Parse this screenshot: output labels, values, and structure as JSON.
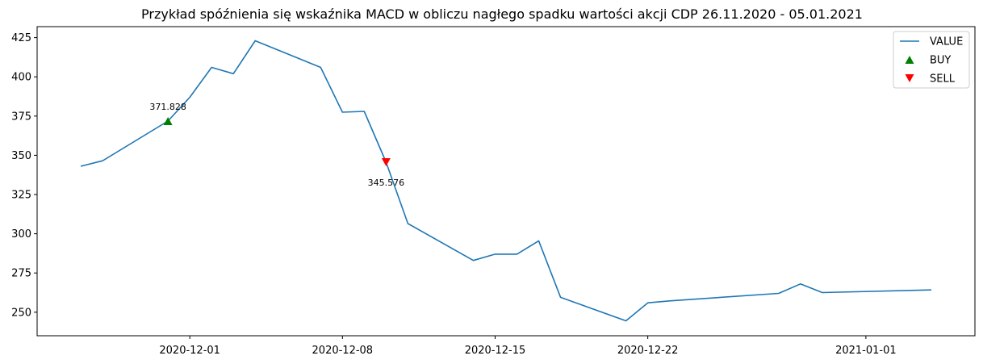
{
  "chart_data": {
    "type": "line",
    "title": "Przykład spóźnienia się wskaźnika MACD w obliczu nagłego spadku wartości akcji CDP 26.11.2020 - 05.01.2021",
    "xlabel": "",
    "ylabel": "",
    "xlim": [
      "2020-11-24",
      "2021-01-06"
    ],
    "ylim": [
      235,
      432
    ],
    "grid": false,
    "legend_position": "top-right",
    "x_ticks": [
      {
        "date": "2020-12-01",
        "label": "2020-12-01"
      },
      {
        "date": "2020-12-08",
        "label": "2020-12-08"
      },
      {
        "date": "2020-12-15",
        "label": "2020-12-15"
      },
      {
        "date": "2020-12-22",
        "label": "2020-12-22"
      },
      {
        "date": "2021-01-01",
        "label": "2021-01-01"
      }
    ],
    "y_ticks": [
      250,
      275,
      300,
      325,
      350,
      375,
      400,
      425
    ],
    "series": [
      {
        "name": "VALUE",
        "color": "#1f77b4",
        "points": [
          {
            "x": "2020-11-26",
            "y": 343
          },
          {
            "x": "2020-11-27",
            "y": 346.5
          },
          {
            "x": "2020-11-30",
            "y": 371.8
          },
          {
            "x": "2020-12-01",
            "y": 387
          },
          {
            "x": "2020-12-02",
            "y": 406
          },
          {
            "x": "2020-12-03",
            "y": 402
          },
          {
            "x": "2020-12-04",
            "y": 423
          },
          {
            "x": "2020-12-07",
            "y": 406
          },
          {
            "x": "2020-12-08",
            "y": 377.5
          },
          {
            "x": "2020-12-09",
            "y": 378
          },
          {
            "x": "2020-12-10",
            "y": 345.6
          },
          {
            "x": "2020-12-11",
            "y": 306.5
          },
          {
            "x": "2020-12-14",
            "y": 283
          },
          {
            "x": "2020-12-15",
            "y": 287
          },
          {
            "x": "2020-12-16",
            "y": 287
          },
          {
            "x": "2020-12-17",
            "y": 295.5
          },
          {
            "x": "2020-12-18",
            "y": 259.5
          },
          {
            "x": "2020-12-21",
            "y": 244.5
          },
          {
            "x": "2020-12-22",
            "y": 256
          },
          {
            "x": "2020-12-23",
            "y": 257.2
          },
          {
            "x": "2020-12-28",
            "y": 262
          },
          {
            "x": "2020-12-29",
            "y": 268
          },
          {
            "x": "2020-12-30",
            "y": 262.5
          },
          {
            "x": "2021-01-04",
            "y": 264.2
          }
        ]
      }
    ],
    "markers": [
      {
        "name": "BUY",
        "x": "2020-11-30",
        "y": 371.828,
        "label": "371.828",
        "symbol": "triangle-up",
        "color": "#008000",
        "label_position": "above"
      },
      {
        "name": "SELL",
        "x": "2020-12-10",
        "y": 345.576,
        "label": "345.576",
        "symbol": "triangle-down",
        "color": "#ff0000",
        "label_position": "below"
      }
    ],
    "legend": [
      {
        "label": "VALUE",
        "kind": "line",
        "color": "#1f77b4"
      },
      {
        "label": "BUY",
        "kind": "triangle-up",
        "color": "#008000"
      },
      {
        "label": "SELL",
        "kind": "triangle-down",
        "color": "#ff0000"
      }
    ]
  }
}
